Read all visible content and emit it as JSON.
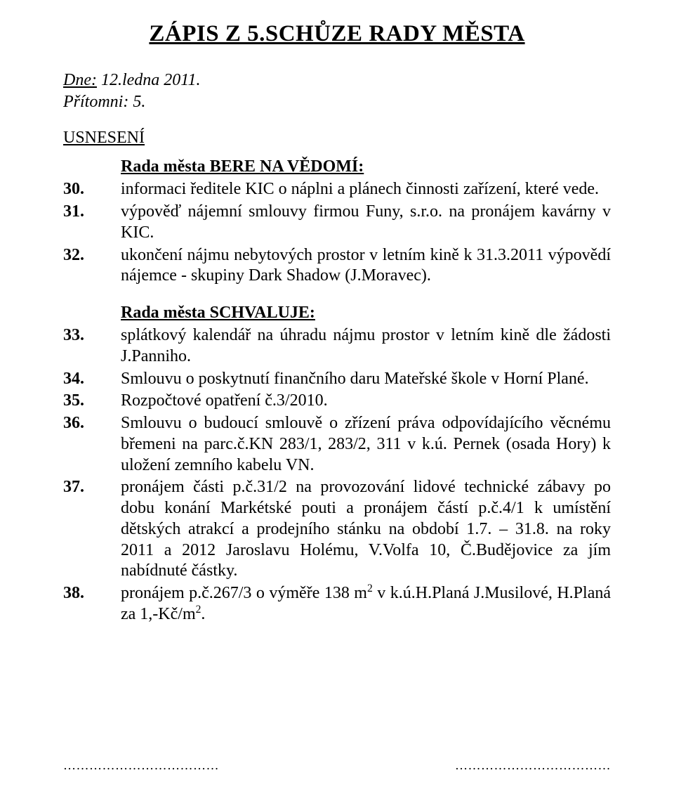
{
  "title": "ZÁPIS Z 5.SCHŮZE  RADY  MĚSTA",
  "date_label": "Dne:",
  "date_value": "12.ledna 2011.",
  "present_label": "Přítomni:",
  "present_value": "5.",
  "resolutions_label": "USNESENÍ",
  "sectionA": {
    "heading": "Rada města BERE NA VĚDOMÍ:",
    "items": [
      {
        "n": "30.",
        "t": "informaci ředitele KIC o náplni a plánech činnosti zařízení, které vede."
      },
      {
        "n": "31.",
        "t": "výpověď nájemní smlouvy firmou Funy, s.r.o. na pronájem kavárny v KIC."
      },
      {
        "n": "32.",
        "t": "ukončení nájmu nebytových prostor v letním kině k 31.3.2011 výpovědí nájemce - skupiny Dark Shadow (J.Moravec)."
      }
    ]
  },
  "sectionB": {
    "heading": "Rada města SCHVALUJE:",
    "items": [
      {
        "n": "33.",
        "t": "splátkový kalendář na úhradu nájmu prostor v letním kině dle žádosti J.Panniho."
      },
      {
        "n": "34.",
        "t": "Smlouvu o poskytnutí finančního daru Mateřské škole v Horní Plané."
      },
      {
        "n": "35.",
        "t": "Rozpočtové opatření č.3/2010."
      },
      {
        "n": "36.",
        "t": "Smlouvu o budoucí smlouvě o zřízení práva odpovídajícího věcnému břemeni na parc.č.KN 283/1, 283/2, 311 v k.ú. Pernek (osada Hory) k uložení zemního kabelu VN."
      },
      {
        "n": "37.",
        "t": "pronájem části p.č.31/2 na provozování lidové technické zábavy po dobu konání Markétské pouti a pronájem částí p.č.4/1 k umístění dětských atrakcí a prodejního stánku na období 1.7. – 31.8. na roky 2011 a 2012 Jaroslavu Holému, V.Volfa 10, Č.Budějovice za jím nabídnuté částky."
      }
    ],
    "item38": {
      "n": "38.",
      "pre": "pronájem p.č.267/3 o výměře 138 m",
      "sup1": "2",
      "mid": " v k.ú.H.Planá J.Musilové, H.Planá za 1,-Kč/m",
      "sup2": "2",
      "post": "."
    }
  },
  "sigline": "………………………………"
}
